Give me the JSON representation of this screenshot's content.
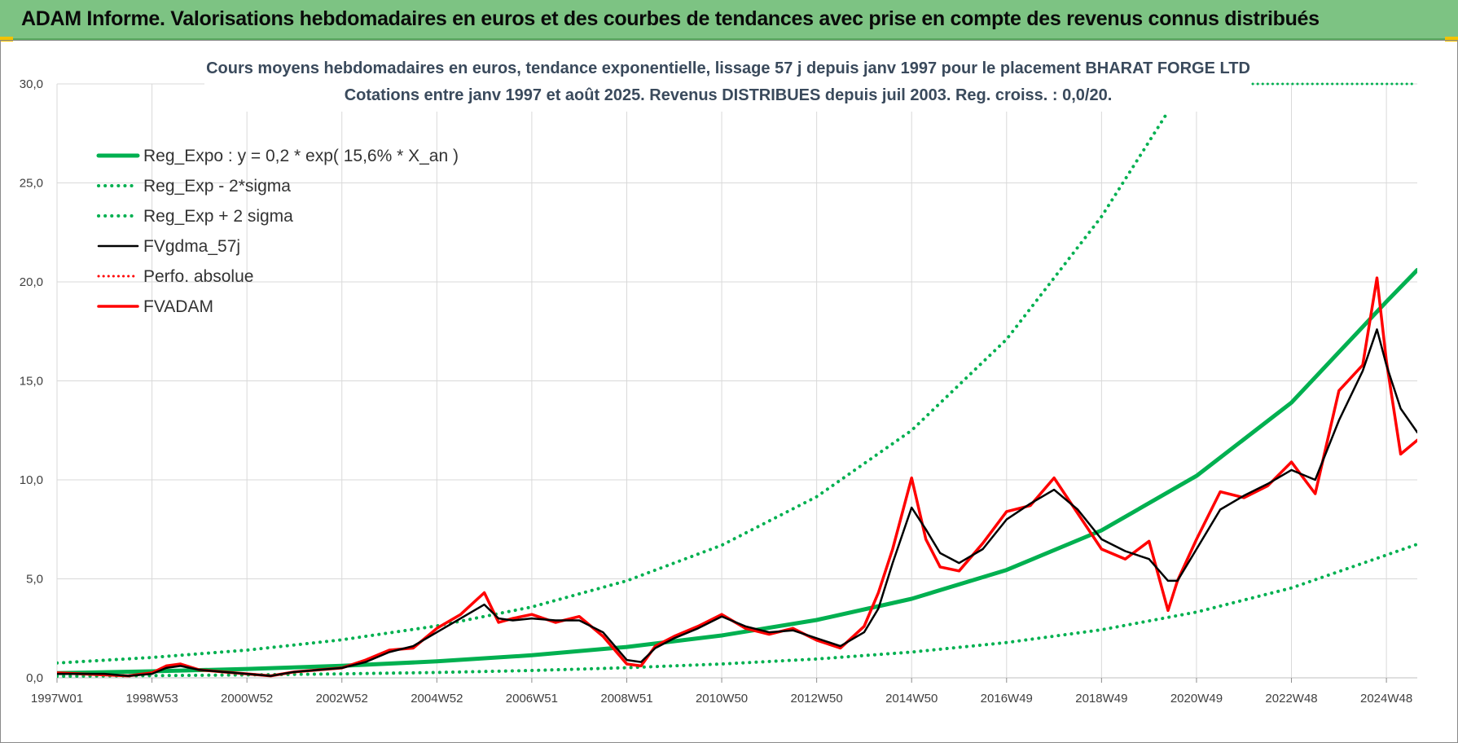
{
  "banner": {
    "title": "ADAM Informe. Valorisations hebdomadaires en euros et des courbes de tendances avec prise en compte des revenus connus distribués"
  },
  "colors": {
    "banner_bg": "#7dc383",
    "reg_green": "#00b050",
    "gdma_black": "#000000",
    "fvadam_red": "#ff0000",
    "grid": "#d9d9d9"
  },
  "chart_data": {
    "type": "line",
    "title_line1": "Cours moyens hebdomadaires en euros, tendance exponentielle, lissage 57 j depuis janv 1997 pour le placement BHARAT FORGE LTD",
    "title_line2": "Cotations entre janv 1997 et août 2025.  Revenus DISTRIBUES depuis juil 2003.  Reg. croiss. : 0,0/20.",
    "xlabel": "",
    "ylabel": "",
    "ylim": [
      0,
      30
    ],
    "xlim": [
      1997.0,
      2025.65
    ],
    "grid": true,
    "legend_position": "top-left",
    "y_ticks": [
      "0,0",
      "5,0",
      "10,0",
      "15,0",
      "20,0",
      "25,0",
      "30,0"
    ],
    "x_ticks": [
      {
        "label": "1997W01",
        "x": 1997.0
      },
      {
        "label": "1998W53",
        "x": 1999.0
      },
      {
        "label": "2000W52",
        "x": 2001.0
      },
      {
        "label": "2002W52",
        "x": 2003.0
      },
      {
        "label": "2004W52",
        "x": 2005.0
      },
      {
        "label": "2006W51",
        "x": 2007.0
      },
      {
        "label": "2008W51",
        "x": 2009.0
      },
      {
        "label": "2010W50",
        "x": 2011.0
      },
      {
        "label": "2012W50",
        "x": 2013.0
      },
      {
        "label": "2014W50",
        "x": 2015.0
      },
      {
        "label": "2016W49",
        "x": 2017.0
      },
      {
        "label": "2018W49",
        "x": 2019.0
      },
      {
        "label": "2020W49",
        "x": 2021.0
      },
      {
        "label": "2022W48",
        "x": 2023.0
      },
      {
        "label": "2024W48",
        "x": 2025.0
      }
    ],
    "series": [
      {
        "name": "Reg_Expo : y = 0,2 * exp( 15,6% *  X_an )",
        "style": "solid-green",
        "x": [
          1997,
          1999,
          2001,
          2003,
          2005,
          2007,
          2009,
          2011,
          2013,
          2015,
          2017,
          2019,
          2021,
          2023,
          2025,
          2025.65
        ],
        "y": [
          0.24,
          0.33,
          0.45,
          0.61,
          0.83,
          1.14,
          1.56,
          2.14,
          2.92,
          3.99,
          5.45,
          7.45,
          10.2,
          13.9,
          19.0,
          20.6
        ]
      },
      {
        "name": "Reg_Exp - 2*sigma",
        "style": "dotted-green",
        "x": [
          1997,
          1999,
          2001,
          2003,
          2005,
          2007,
          2009,
          2011,
          2013,
          2015,
          2017,
          2019,
          2021,
          2023,
          2025,
          2025.65
        ],
        "y": [
          0.08,
          0.11,
          0.15,
          0.2,
          0.27,
          0.37,
          0.51,
          0.7,
          0.95,
          1.3,
          1.78,
          2.43,
          3.32,
          4.54,
          6.2,
          6.75
        ]
      },
      {
        "name": "Reg_Exp + 2 sigma",
        "style": "dotted-green",
        "x": [
          1997,
          1999,
          2001,
          2003,
          2005,
          2007,
          2009,
          2011,
          2013,
          2015,
          2017,
          2019,
          2020.4
        ],
        "y": [
          0.75,
          1.03,
          1.4,
          1.92,
          2.62,
          3.58,
          4.9,
          6.7,
          9.15,
          12.5,
          17.1,
          23.3,
          28.6
        ]
      },
      {
        "name": "FVgdma_57j",
        "style": "solid-black",
        "x": [
          1997,
          1997.5,
          1998,
          1998.5,
          1999,
          1999.3,
          1999.6,
          2000,
          2000.5,
          2001,
          2001.5,
          2002,
          2002.5,
          2003,
          2003.5,
          2004,
          2004.5,
          2005,
          2005.5,
          2006,
          2006.3,
          2006.6,
          2007,
          2007.5,
          2008,
          2008.5,
          2009,
          2009.3,
          2009.6,
          2010,
          2010.5,
          2011,
          2011.5,
          2012,
          2012.5,
          2013,
          2013.5,
          2014,
          2014.3,
          2014.6,
          2015,
          2015.3,
          2015.6,
          2016,
          2016.5,
          2017,
          2017.5,
          2018,
          2018.5,
          2019,
          2019.5,
          2020,
          2020.4,
          2020.6,
          2021,
          2021.5,
          2022,
          2022.5,
          2023,
          2023.5,
          2024,
          2024.5,
          2024.8,
          2025,
          2025.3,
          2025.65
        ],
        "y": [
          0.2,
          0.2,
          0.2,
          0.1,
          0.2,
          0.5,
          0.6,
          0.4,
          0.3,
          0.2,
          0.1,
          0.3,
          0.4,
          0.5,
          0.8,
          1.3,
          1.6,
          2.3,
          3.0,
          3.7,
          3.0,
          2.9,
          3.0,
          2.9,
          2.9,
          2.3,
          0.9,
          0.8,
          1.5,
          2.0,
          2.5,
          3.1,
          2.6,
          2.3,
          2.4,
          2.0,
          1.6,
          2.3,
          3.5,
          5.8,
          8.6,
          7.5,
          6.3,
          5.8,
          6.5,
          8.0,
          8.8,
          9.5,
          8.5,
          7.0,
          6.4,
          6.0,
          4.9,
          4.9,
          6.5,
          8.5,
          9.2,
          9.8,
          10.5,
          10.0,
          13.0,
          15.5,
          17.6,
          15.8,
          13.6,
          12.4
        ]
      },
      {
        "name": "Perfo. absolue",
        "style": "dotted-red",
        "x": [],
        "y": []
      },
      {
        "name": "FVADAM",
        "style": "solid-red",
        "x": [
          1997,
          1997.5,
          1998,
          1998.5,
          1999,
          1999.3,
          1999.6,
          2000,
          2000.5,
          2001,
          2001.5,
          2002,
          2002.5,
          2003,
          2003.5,
          2004,
          2004.5,
          2005,
          2005.5,
          2006,
          2006.3,
          2006.6,
          2007,
          2007.5,
          2008,
          2008.5,
          2009,
          2009.3,
          2009.6,
          2010,
          2010.5,
          2011,
          2011.5,
          2012,
          2012.5,
          2013,
          2013.5,
          2014,
          2014.3,
          2014.6,
          2015,
          2015.3,
          2015.6,
          2016,
          2016.5,
          2017,
          2017.5,
          2018,
          2018.5,
          2019,
          2019.5,
          2020,
          2020.4,
          2020.6,
          2021,
          2021.5,
          2022,
          2022.5,
          2023,
          2023.5,
          2024,
          2024.5,
          2024.8,
          2025,
          2025.3,
          2025.65
        ],
        "y": [
          0.25,
          0.2,
          0.15,
          0.1,
          0.25,
          0.6,
          0.7,
          0.4,
          0.3,
          0.2,
          0.1,
          0.3,
          0.4,
          0.5,
          0.9,
          1.4,
          1.5,
          2.5,
          3.2,
          4.3,
          2.8,
          3.0,
          3.2,
          2.8,
          3.1,
          2.1,
          0.7,
          0.6,
          1.6,
          2.1,
          2.6,
          3.2,
          2.5,
          2.2,
          2.5,
          1.9,
          1.5,
          2.6,
          4.3,
          6.5,
          10.1,
          7.0,
          5.6,
          5.4,
          6.8,
          8.4,
          8.7,
          10.1,
          8.3,
          6.5,
          6.0,
          6.9,
          3.4,
          4.9,
          7.0,
          9.4,
          9.1,
          9.7,
          10.9,
          9.3,
          14.5,
          15.8,
          20.2,
          16.0,
          11.3,
          12.0
        ]
      }
    ]
  }
}
